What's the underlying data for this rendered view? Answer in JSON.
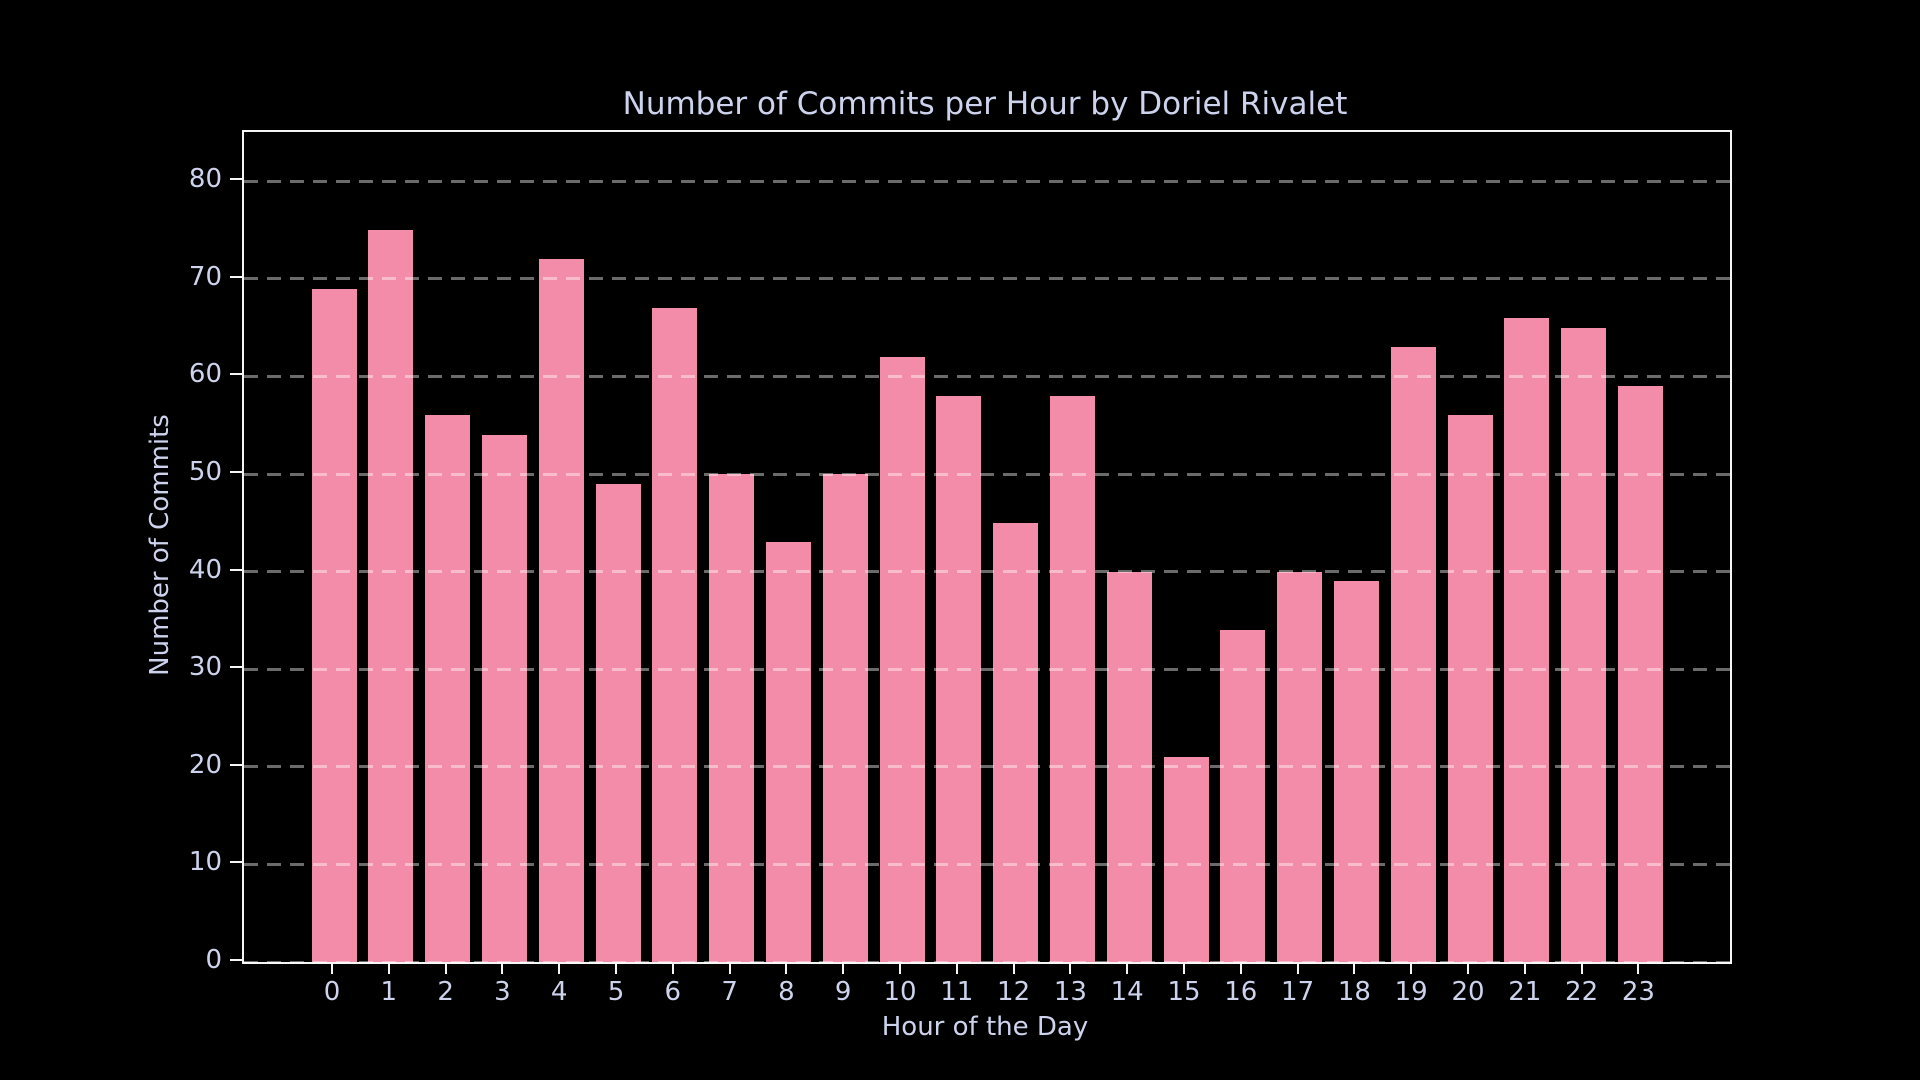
{
  "title": "Number of Commits per Hour by Doriel Rivalet",
  "colors": {
    "background": "#000000",
    "bar": "#F38CA8",
    "text": "#cdd3ec",
    "spine": "#f5f5f5",
    "grid": "rgba(255,255,255,0.42)"
  },
  "chart_data": {
    "type": "bar",
    "title": "Number of Commits per Hour by Doriel Rivalet",
    "xlabel": "Hour of the Day",
    "ylabel": "Number of Commits",
    "categories": [
      "0",
      "1",
      "2",
      "3",
      "4",
      "5",
      "6",
      "7",
      "8",
      "9",
      "10",
      "11",
      "12",
      "13",
      "14",
      "15",
      "16",
      "17",
      "18",
      "19",
      "20",
      "21",
      "22",
      "23"
    ],
    "values": [
      69,
      75,
      56,
      54,
      72,
      49,
      67,
      50,
      43,
      50,
      62,
      58,
      45,
      58,
      40,
      21,
      34,
      40,
      39,
      63,
      56,
      66,
      65,
      59
    ],
    "y_ticks": [
      0,
      10,
      20,
      30,
      40,
      50,
      60,
      70,
      80
    ],
    "ylim": [
      0,
      85
    ],
    "grid": "dashed horizontal, drawn above bars",
    "legend": "none",
    "bar_color": "#F38CA8",
    "background": "#000000"
  }
}
